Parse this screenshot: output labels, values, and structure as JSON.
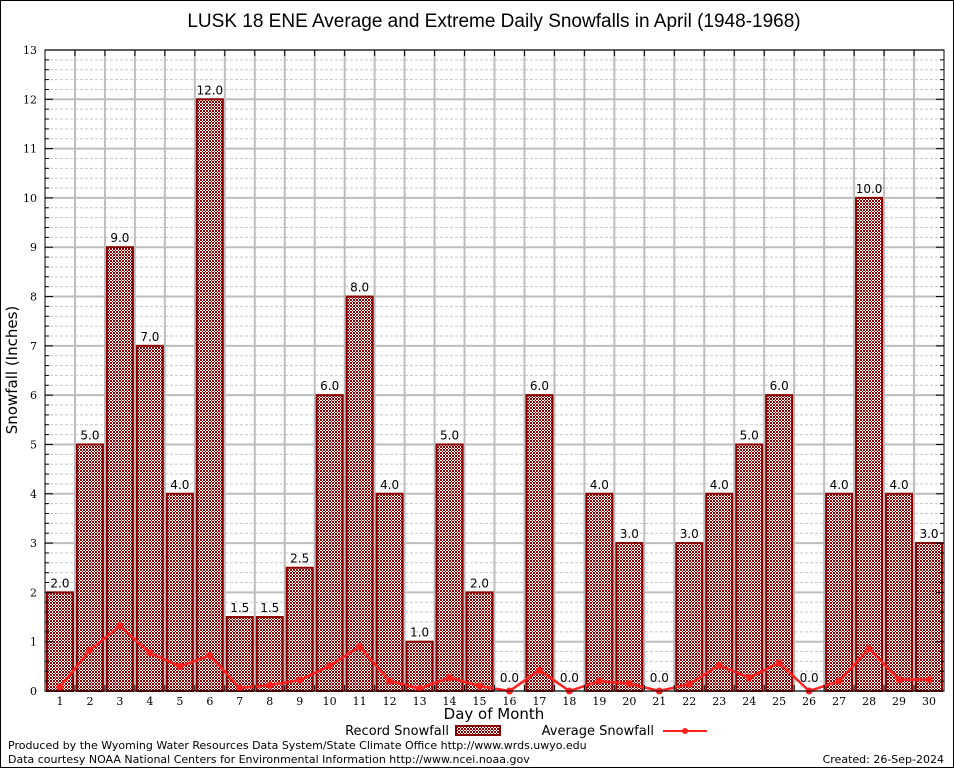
{
  "chart_data": {
    "type": "bar",
    "title": "LUSK 18 ENE Average and Extreme Daily Snowfalls in April (1948-1968)",
    "xlabel": "Day of Month",
    "ylabel": "Snowfall (Inches)",
    "ylim": [
      0,
      13
    ],
    "yticks": [
      0,
      1,
      2,
      3,
      4,
      5,
      6,
      7,
      8,
      9,
      10,
      11,
      12,
      13
    ],
    "grid": true,
    "legend_position": "bottom-center",
    "categories": [
      "1",
      "2",
      "3",
      "4",
      "5",
      "6",
      "7",
      "8",
      "9",
      "10",
      "11",
      "12",
      "13",
      "14",
      "15",
      "16",
      "17",
      "18",
      "19",
      "20",
      "21",
      "22",
      "23",
      "24",
      "25",
      "26",
      "27",
      "28",
      "29",
      "30"
    ],
    "series": [
      {
        "name": "Record Snowfall",
        "kind": "bar",
        "color": "#8b0000",
        "values": [
          2.0,
          5.0,
          9.0,
          7.0,
          4.0,
          12.0,
          1.5,
          1.5,
          2.5,
          6.0,
          8.0,
          4.0,
          1.0,
          5.0,
          2.0,
          0.0,
          6.0,
          0.0,
          4.0,
          3.0,
          0.0,
          3.0,
          4.0,
          5.0,
          6.0,
          0.0,
          4.0,
          10.0,
          4.0,
          3.0
        ],
        "labels": [
          "2.0",
          "5.0",
          "9.0",
          "7.0",
          "4.0",
          "12.0",
          "1.5",
          "1.5",
          "2.5",
          "6.0",
          "8.0",
          "4.0",
          "1.0",
          "5.0",
          "2.0",
          "0.0",
          "6.0",
          "0.0",
          "4.0",
          "3.0",
          "0.0",
          "3.0",
          "4.0",
          "5.0",
          "6.0",
          "0.0",
          "4.0",
          "10.0",
          "4.0",
          "3.0"
        ]
      },
      {
        "name": "Average Snowfall",
        "kind": "line",
        "color": "#ff2020",
        "values": [
          0.08,
          0.83,
          1.32,
          0.77,
          0.5,
          0.72,
          0.06,
          0.12,
          0.22,
          0.51,
          0.9,
          0.2,
          0.05,
          0.27,
          0.1,
          0.0,
          0.42,
          0.0,
          0.2,
          0.15,
          0.0,
          0.14,
          0.52,
          0.27,
          0.57,
          0.0,
          0.2,
          0.86,
          0.23,
          0.23
        ]
      }
    ]
  },
  "footer": {
    "line1": "Produced by the Wyoming Water Resources Data System/State Climate Office http://www.wrds.uwyo.edu",
    "line2": "Data courtesy NOAA National Centers for Environmental Information http://www.ncei.noaa.gov",
    "created": "Created: 26-Sep-2024"
  }
}
